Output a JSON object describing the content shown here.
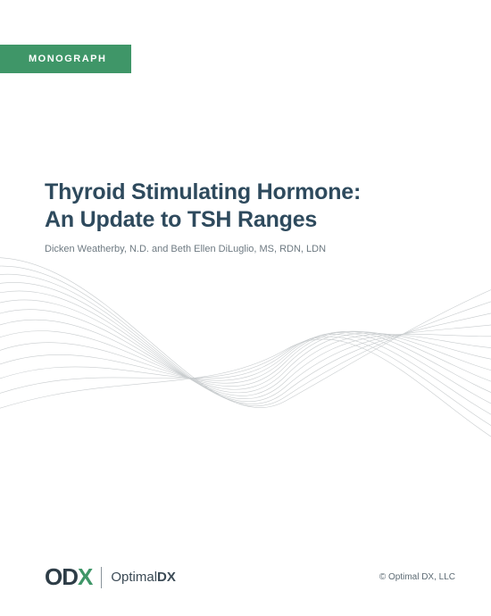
{
  "badge": {
    "label": "MONOGRAPH",
    "bg": "#3f9668",
    "fg": "#ffffff"
  },
  "title": {
    "line1": "Thyroid Stimulating Hormone:",
    "line2": "An Update to TSH Ranges",
    "color": "#2e4a5d",
    "fontsize": 25
  },
  "authors": {
    "text": "Dicken Weatherby, N.D. and Beth Ellen DiLuglio, MS, RDN, LDN",
    "color": "#6e7a82",
    "fontsize": 11
  },
  "waves": {
    "stroke": "#c8ccce",
    "stroke_width": 0.6,
    "line_count": 14
  },
  "logo": {
    "mark_main": "OD",
    "mark_accent": "X",
    "mark_main_color": "#2e3d47",
    "mark_accent_color": "#3f9668",
    "wordmark_prefix": "Optimal",
    "wordmark_suffix": "DX"
  },
  "copyright": "© Optimal DX, LLC"
}
